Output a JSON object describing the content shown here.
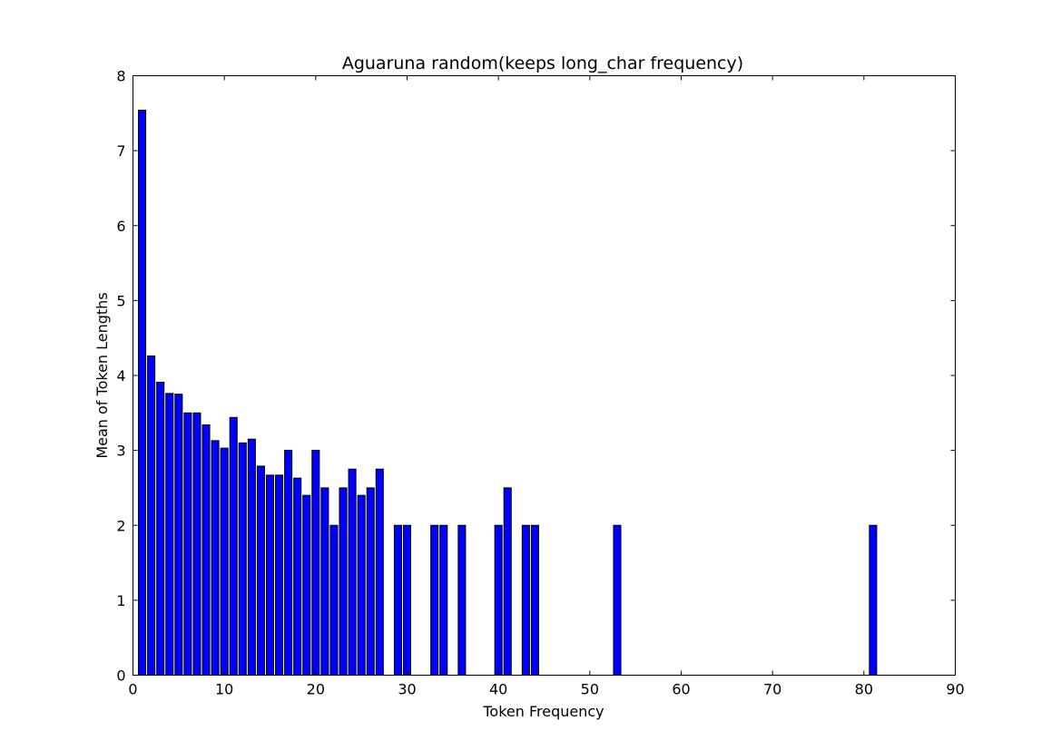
{
  "chart_data": {
    "type": "bar",
    "title": "Aguaruna random(keeps long_char frequency)",
    "xlabel": "Token Frequency",
    "ylabel": "Mean of Token Lengths",
    "xlim": [
      0,
      90
    ],
    "ylim": [
      0,
      8
    ],
    "xticks": [
      0,
      10,
      20,
      30,
      40,
      50,
      60,
      70,
      80,
      90
    ],
    "yticks": [
      0,
      1,
      2,
      3,
      4,
      5,
      6,
      7,
      8
    ],
    "grid": false,
    "bar_color": "#0000ff",
    "edge_color": "#000000",
    "x": [
      1,
      2,
      3,
      4,
      5,
      6,
      7,
      8,
      9,
      10,
      11,
      12,
      13,
      14,
      15,
      16,
      17,
      18,
      19,
      20,
      21,
      22,
      23,
      24,
      25,
      26,
      27,
      29,
      30,
      33,
      34,
      36,
      40,
      41,
      43,
      44,
      53,
      81
    ],
    "values": [
      7.54,
      4.26,
      3.91,
      3.76,
      3.75,
      3.5,
      3.5,
      3.34,
      3.13,
      3.03,
      3.44,
      3.1,
      3.15,
      2.79,
      2.67,
      2.67,
      3.0,
      2.63,
      2.4,
      3.0,
      2.5,
      2.0,
      2.5,
      2.75,
      2.4,
      2.5,
      2.75,
      2.0,
      2.0,
      2.0,
      2.0,
      2.0,
      2.0,
      2.5,
      2.0,
      2.0,
      2.0,
      2.0
    ]
  }
}
